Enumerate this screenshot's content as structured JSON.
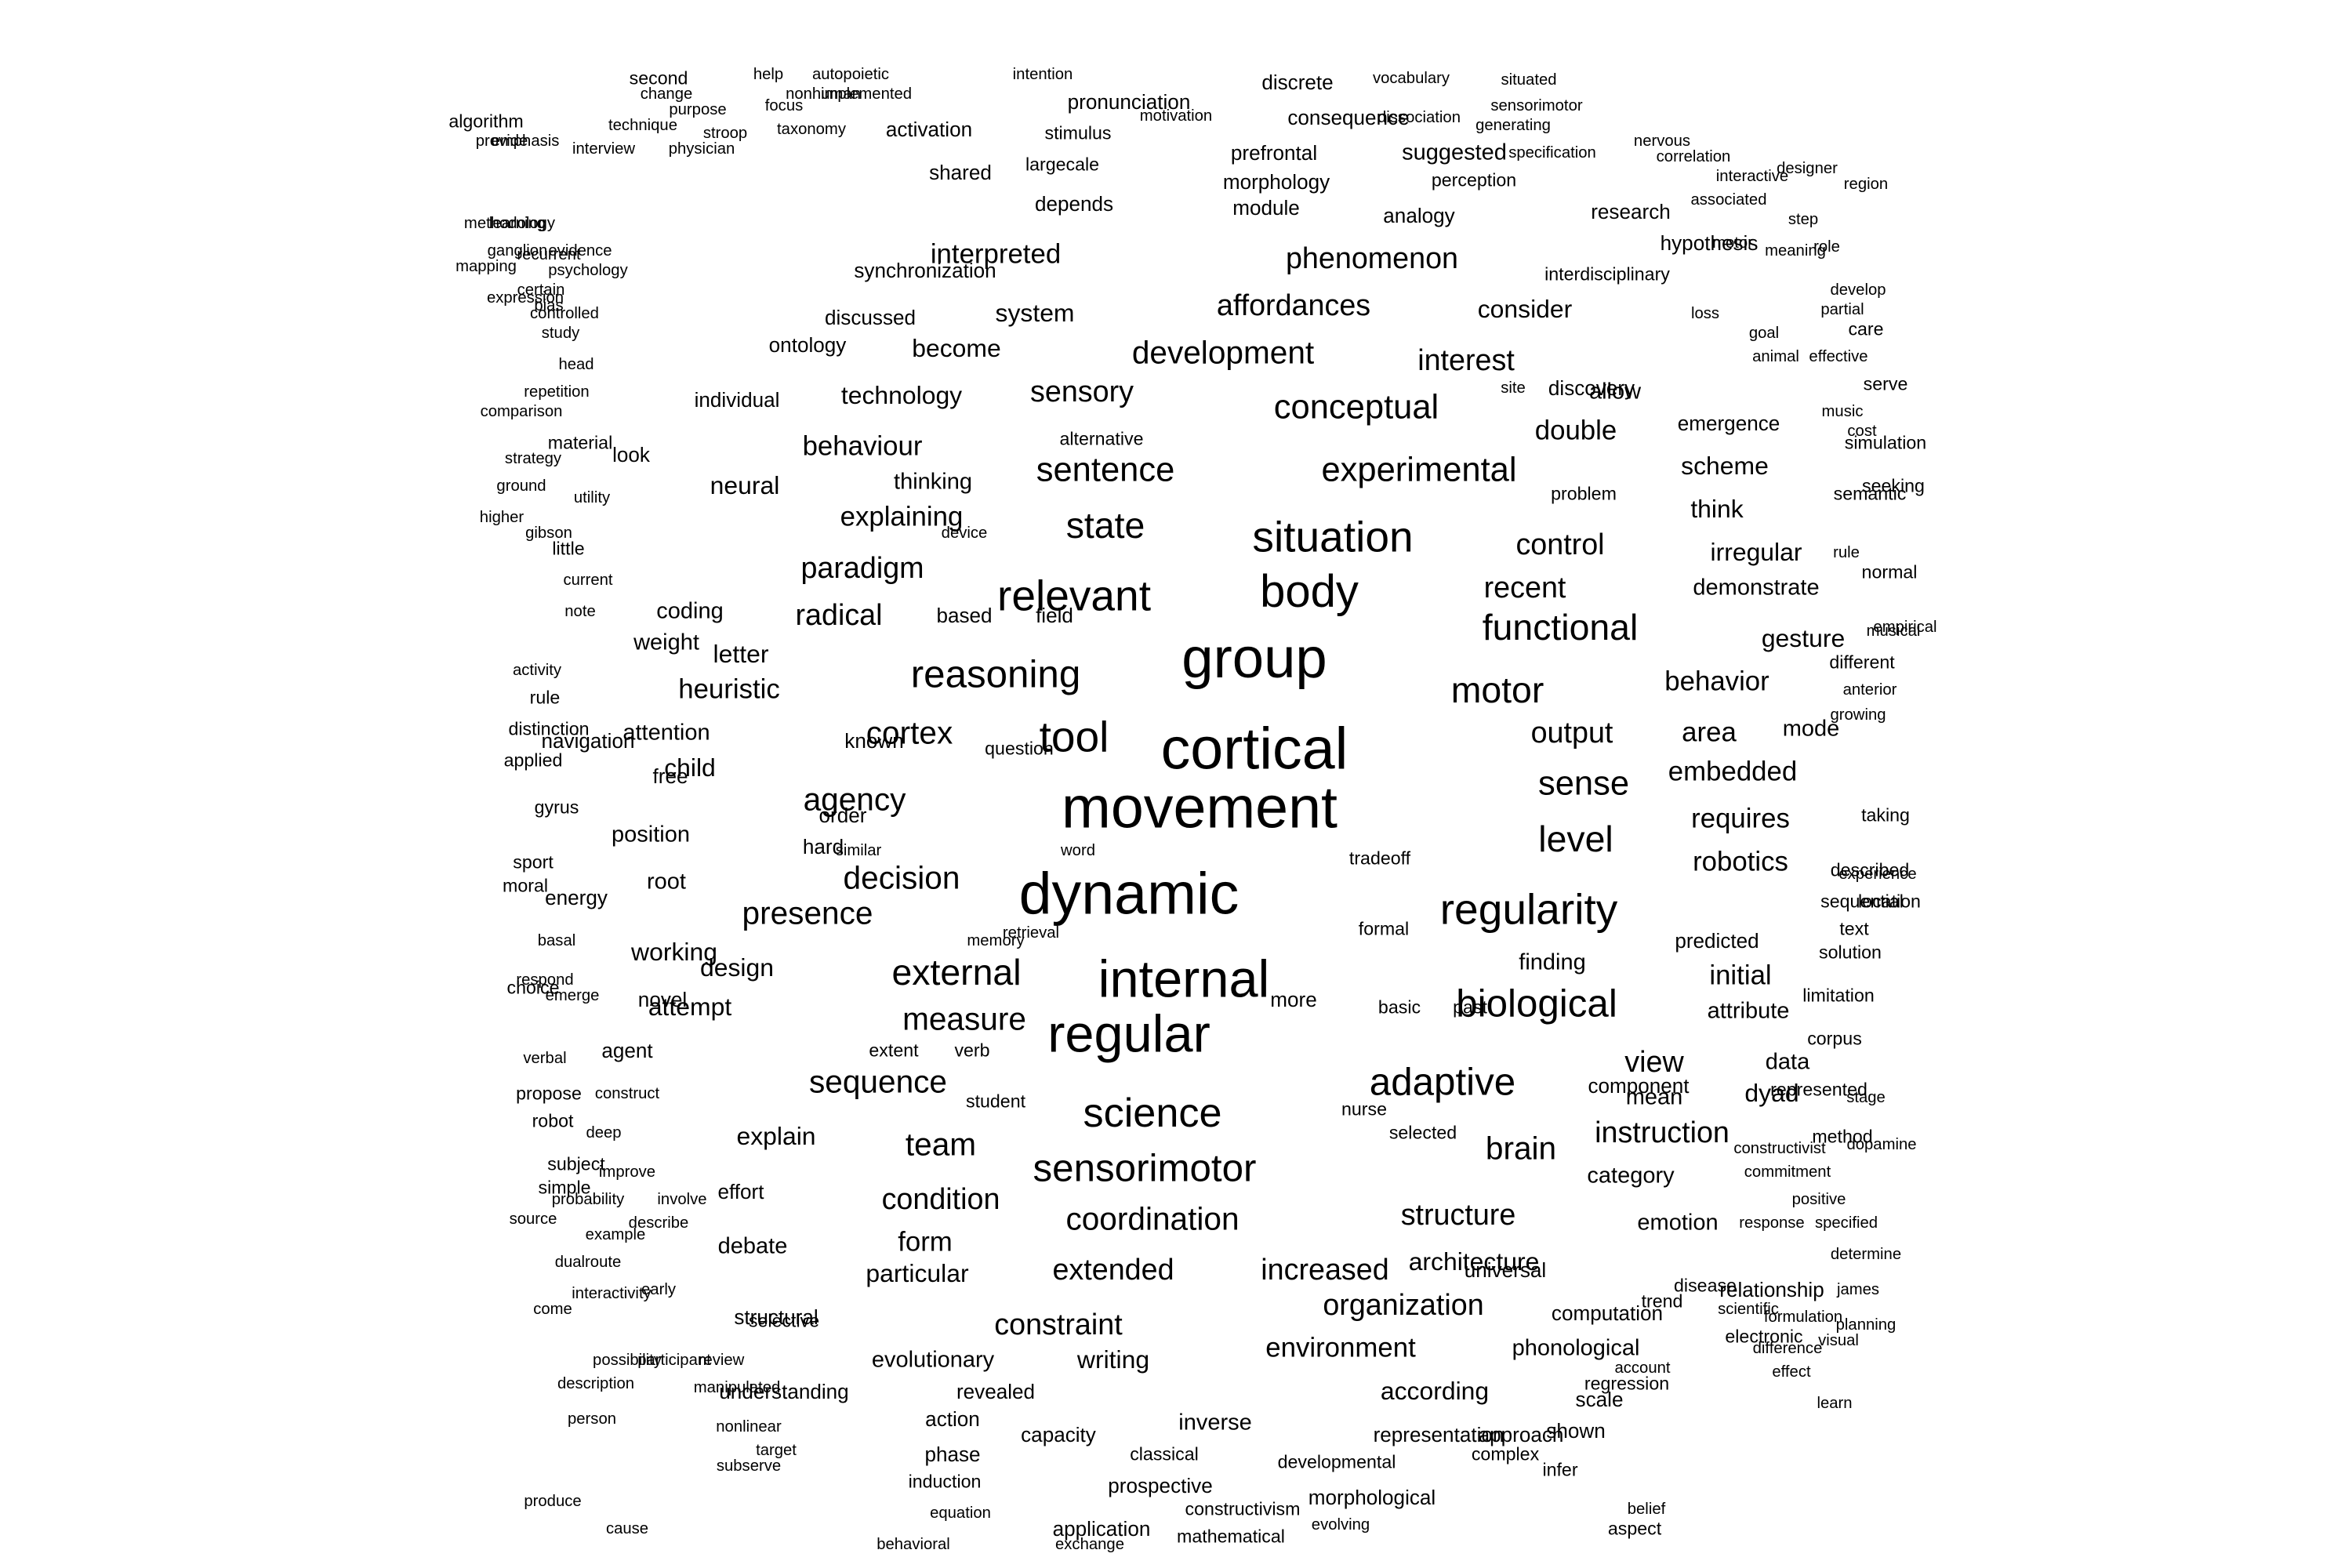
{
  "text_color": "#000000",
  "background_color": "#ffffff",
  "words": [
    {
      "text": "movement",
      "weight": 52
    },
    {
      "text": "dynamic",
      "weight": 52
    },
    {
      "text": "cortical",
      "weight": 52
    },
    {
      "text": "group",
      "weight": 50
    },
    {
      "text": "internal",
      "weight": 46
    },
    {
      "text": "regular",
      "weight": 46
    },
    {
      "text": "body",
      "weight": 40
    },
    {
      "text": "relevant",
      "weight": 38
    },
    {
      "text": "situation",
      "weight": 38
    },
    {
      "text": "regularity",
      "weight": 38
    },
    {
      "text": "tool",
      "weight": 38
    },
    {
      "text": "sensorimotor",
      "weight": 34
    },
    {
      "text": "science",
      "weight": 36
    },
    {
      "text": "reasoning",
      "weight": 34
    },
    {
      "text": "biological",
      "weight": 34
    },
    {
      "text": "adaptive",
      "weight": 34
    },
    {
      "text": "external",
      "weight": 32
    },
    {
      "text": "functional",
      "weight": 32
    },
    {
      "text": "motor",
      "weight": 32
    },
    {
      "text": "experimental",
      "weight": 30
    },
    {
      "text": "state",
      "weight": 32
    },
    {
      "text": "sentence",
      "weight": 30
    },
    {
      "text": "conceptual",
      "weight": 30
    },
    {
      "text": "level",
      "weight": 32
    },
    {
      "text": "sense",
      "weight": 30
    },
    {
      "text": "development",
      "weight": 28
    },
    {
      "text": "affordances",
      "weight": 26
    },
    {
      "text": "coordination",
      "weight": 28
    },
    {
      "text": "measure",
      "weight": 28
    },
    {
      "text": "sequence",
      "weight": 28
    },
    {
      "text": "cortex",
      "weight": 28
    },
    {
      "text": "decision",
      "weight": 28
    },
    {
      "text": "presence",
      "weight": 28
    },
    {
      "text": "agency",
      "weight": 28
    },
    {
      "text": "phenomenon",
      "weight": 26
    },
    {
      "text": "brain",
      "weight": 28
    },
    {
      "text": "team",
      "weight": 28
    },
    {
      "text": "extended",
      "weight": 26
    },
    {
      "text": "increased",
      "weight": 26
    },
    {
      "text": "constraint",
      "weight": 26
    },
    {
      "text": "organization",
      "weight": 26
    },
    {
      "text": "structure",
      "weight": 26
    },
    {
      "text": "environment",
      "weight": 24
    },
    {
      "text": "condition",
      "weight": 26
    },
    {
      "text": "instruction",
      "weight": 26
    },
    {
      "text": "view",
      "weight": 26
    },
    {
      "text": "control",
      "weight": 26
    },
    {
      "text": "recent",
      "weight": 26
    },
    {
      "text": "double",
      "weight": 24
    },
    {
      "text": "paradigm",
      "weight": 26
    },
    {
      "text": "radical",
      "weight": 26
    },
    {
      "text": "heuristic",
      "weight": 24
    },
    {
      "text": "explaining",
      "weight": 24
    },
    {
      "text": "behaviour",
      "weight": 24
    },
    {
      "text": "sensory",
      "weight": 26
    },
    {
      "text": "interpreted",
      "weight": 24
    },
    {
      "text": "interest",
      "weight": 26
    },
    {
      "text": "output",
      "weight": 26
    },
    {
      "text": "area",
      "weight": 24
    },
    {
      "text": "embedded",
      "weight": 24
    },
    {
      "text": "behavior",
      "weight": 24
    },
    {
      "text": "requires",
      "weight": 24
    },
    {
      "text": "robotics",
      "weight": 24
    },
    {
      "text": "initial",
      "weight": 24
    },
    {
      "text": "form",
      "weight": 24
    },
    {
      "text": "architecture",
      "weight": 22
    },
    {
      "text": "consider",
      "weight": 22
    },
    {
      "text": "technology",
      "weight": 22
    },
    {
      "text": "system",
      "weight": 22
    },
    {
      "text": "become",
      "weight": 22
    },
    {
      "text": "design",
      "weight": 22
    },
    {
      "text": "attempt",
      "weight": 22
    },
    {
      "text": "explain",
      "weight": 22
    },
    {
      "text": "according",
      "weight": 22
    },
    {
      "text": "particular",
      "weight": 22
    },
    {
      "text": "writing",
      "weight": 22
    },
    {
      "text": "think",
      "weight": 22
    },
    {
      "text": "gesture",
      "weight": 22
    },
    {
      "text": "irregular",
      "weight": 22
    },
    {
      "text": "demonstrate",
      "weight": 20
    },
    {
      "text": "scheme",
      "weight": 22
    },
    {
      "text": "position",
      "weight": 20
    },
    {
      "text": "working",
      "weight": 22
    },
    {
      "text": "letter",
      "weight": 22
    },
    {
      "text": "child",
      "weight": 22
    },
    {
      "text": "neural",
      "weight": 22
    },
    {
      "text": "attention",
      "weight": 20
    },
    {
      "text": "category",
      "weight": 20
    },
    {
      "text": "emotion",
      "weight": 20
    },
    {
      "text": "evolutionary",
      "weight": 20
    },
    {
      "text": "finding",
      "weight": 20
    },
    {
      "text": "attribute",
      "weight": 20
    },
    {
      "text": "dyad",
      "weight": 22
    },
    {
      "text": "mean",
      "weight": 20
    },
    {
      "text": "data",
      "weight": 20
    },
    {
      "text": "inverse",
      "weight": 20
    },
    {
      "text": "phonological",
      "weight": 20
    },
    {
      "text": "computation",
      "weight": 18
    },
    {
      "text": "weight",
      "weight": 20
    },
    {
      "text": "thinking",
      "weight": 20
    },
    {
      "text": "allow",
      "weight": 20
    },
    {
      "text": "coding",
      "weight": 20
    },
    {
      "text": "root",
      "weight": 20
    },
    {
      "text": "debate",
      "weight": 20
    },
    {
      "text": "mode",
      "weight": 20
    },
    {
      "text": "predicted",
      "weight": 18
    },
    {
      "text": "effort",
      "weight": 18
    },
    {
      "text": "action",
      "weight": 18
    },
    {
      "text": "phase",
      "weight": 18
    },
    {
      "text": "relationship",
      "weight": 18
    },
    {
      "text": "representation",
      "weight": 18
    },
    {
      "text": "capacity",
      "weight": 18
    },
    {
      "text": "scale",
      "weight": 18
    },
    {
      "text": "component",
      "weight": 18
    },
    {
      "text": "discovery",
      "weight": 18
    },
    {
      "text": "synchronization",
      "weight": 18
    },
    {
      "text": "activation",
      "weight": 18
    },
    {
      "text": "prefrontal",
      "weight": 18
    },
    {
      "text": "morphology",
      "weight": 18
    },
    {
      "text": "consequence",
      "weight": 18
    },
    {
      "text": "depends",
      "weight": 18
    },
    {
      "text": "approach",
      "weight": 18
    },
    {
      "text": "structural",
      "weight": 18
    },
    {
      "text": "universal",
      "weight": 18
    },
    {
      "text": "revealed",
      "weight": 18
    },
    {
      "text": "understanding",
      "weight": 18
    },
    {
      "text": "prospective",
      "weight": 18
    },
    {
      "text": "morphological",
      "weight": 18
    },
    {
      "text": "application",
      "weight": 18
    },
    {
      "text": "induction",
      "weight": 16
    },
    {
      "text": "complex",
      "weight": 16
    },
    {
      "text": "shown",
      "weight": 18
    },
    {
      "text": "regression",
      "weight": 16
    },
    {
      "text": "seeking",
      "weight": 16
    },
    {
      "text": "simulation",
      "weight": 16
    },
    {
      "text": "serve",
      "weight": 16
    },
    {
      "text": "emergence",
      "weight": 18
    },
    {
      "text": "interdisciplinary",
      "weight": 16
    },
    {
      "text": "hypothesis",
      "weight": 18
    },
    {
      "text": "research",
      "weight": 18
    },
    {
      "text": "perception",
      "weight": 16
    },
    {
      "text": "suggested",
      "weight": 20
    },
    {
      "text": "analogy",
      "weight": 18
    },
    {
      "text": "module",
      "weight": 18
    },
    {
      "text": "shared",
      "weight": 18
    },
    {
      "text": "largecale",
      "weight": 16
    },
    {
      "text": "stimulus",
      "weight": 16
    },
    {
      "text": "pronunciation",
      "weight": 18
    },
    {
      "text": "discrete",
      "weight": 18
    },
    {
      "text": "discussed",
      "weight": 18
    },
    {
      "text": "ontology",
      "weight": 18
    },
    {
      "text": "individual",
      "weight": 18
    },
    {
      "text": "alternative",
      "weight": 16
    },
    {
      "text": "look",
      "weight": 18
    },
    {
      "text": "based",
      "weight": 18
    },
    {
      "text": "field",
      "weight": 18
    },
    {
      "text": "known",
      "weight": 18
    },
    {
      "text": "free",
      "weight": 18
    },
    {
      "text": "hard",
      "weight": 18
    },
    {
      "text": "order",
      "weight": 18
    },
    {
      "text": "navigation",
      "weight": 18
    },
    {
      "text": "energy",
      "weight": 18
    },
    {
      "text": "novel",
      "weight": 18
    },
    {
      "text": "agent",
      "weight": 18
    },
    {
      "text": "more",
      "weight": 18
    },
    {
      "text": "selected",
      "weight": 16
    },
    {
      "text": "problem",
      "weight": 16
    },
    {
      "text": "semantic",
      "weight": 16
    },
    {
      "text": "normal",
      "weight": 16
    },
    {
      "text": "different",
      "weight": 16
    },
    {
      "text": "taking",
      "weight": 16
    },
    {
      "text": "described",
      "weight": 16
    },
    {
      "text": "sequential",
      "weight": 16
    },
    {
      "text": "location",
      "weight": 16
    },
    {
      "text": "solution",
      "weight": 16
    },
    {
      "text": "limitation",
      "weight": 16
    },
    {
      "text": "corpus",
      "weight": 16
    },
    {
      "text": "represented",
      "weight": 16
    },
    {
      "text": "method",
      "weight": 16
    },
    {
      "text": "constructivist",
      "weight": 14
    },
    {
      "text": "commitment",
      "weight": 14
    },
    {
      "text": "positive",
      "weight": 14
    },
    {
      "text": "text",
      "weight": 16
    },
    {
      "text": "music",
      "weight": 14
    },
    {
      "text": "formulation",
      "weight": 14
    },
    {
      "text": "electronic",
      "weight": 16
    },
    {
      "text": "disease",
      "weight": 16
    },
    {
      "text": "trend",
      "weight": 16
    },
    {
      "text": "classical",
      "weight": 16
    },
    {
      "text": "developmental",
      "weight": 16
    },
    {
      "text": "constructivism",
      "weight": 16
    },
    {
      "text": "mathematical",
      "weight": 16
    },
    {
      "text": "exchange",
      "weight": 14
    },
    {
      "text": "evolving",
      "weight": 14
    },
    {
      "text": "infer",
      "weight": 16
    },
    {
      "text": "aspect",
      "weight": 16
    },
    {
      "text": "belief",
      "weight": 14
    },
    {
      "text": "nurse",
      "weight": 16
    },
    {
      "text": "formal",
      "weight": 16
    },
    {
      "text": "basic",
      "weight": 16
    },
    {
      "text": "past",
      "weight": 16
    },
    {
      "text": "extent",
      "weight": 16
    },
    {
      "text": "verb",
      "weight": 16
    },
    {
      "text": "student",
      "weight": 16
    },
    {
      "text": "tradeoff",
      "weight": 16
    },
    {
      "text": "question",
      "weight": 16
    },
    {
      "text": "selective",
      "weight": 16
    },
    {
      "text": "early",
      "weight": 14
    },
    {
      "text": "construct",
      "weight": 14
    },
    {
      "text": "deep",
      "weight": 14
    },
    {
      "text": "improve",
      "weight": 14
    },
    {
      "text": "involve",
      "weight": 14
    },
    {
      "text": "describe",
      "weight": 14
    },
    {
      "text": "probability",
      "weight": 14
    },
    {
      "text": "example",
      "weight": 14
    },
    {
      "text": "dualroute",
      "weight": 14
    },
    {
      "text": "interactivity",
      "weight": 14
    },
    {
      "text": "equation",
      "weight": 14
    },
    {
      "text": "behavioral",
      "weight": 14
    },
    {
      "text": "target",
      "weight": 14
    },
    {
      "text": "subserve",
      "weight": 14
    },
    {
      "text": "nonlinear",
      "weight": 14
    },
    {
      "text": "manipulated",
      "weight": 14
    },
    {
      "text": "review",
      "weight": 14
    },
    {
      "text": "participant",
      "weight": 14
    },
    {
      "text": "possibility",
      "weight": 14
    },
    {
      "text": "description",
      "weight": 14
    },
    {
      "text": "person",
      "weight": 14
    },
    {
      "text": "produce",
      "weight": 14
    },
    {
      "text": "cause",
      "weight": 14
    },
    {
      "text": "come",
      "weight": 14
    },
    {
      "text": "source",
      "weight": 14
    },
    {
      "text": "simple",
      "weight": 16
    },
    {
      "text": "subject",
      "weight": 16
    },
    {
      "text": "robot",
      "weight": 16
    },
    {
      "text": "propose",
      "weight": 16
    },
    {
      "text": "verbal",
      "weight": 14
    },
    {
      "text": "emerge",
      "weight": 14
    },
    {
      "text": "choice",
      "weight": 16
    },
    {
      "text": "respond",
      "weight": 14
    },
    {
      "text": "basal",
      "weight": 14
    },
    {
      "text": "moral",
      "weight": 16
    },
    {
      "text": "sport",
      "weight": 16
    },
    {
      "text": "gyrus",
      "weight": 16
    },
    {
      "text": "applied",
      "weight": 16
    },
    {
      "text": "distinction",
      "weight": 16
    },
    {
      "text": "rule",
      "weight": 16
    },
    {
      "text": "activity",
      "weight": 14
    },
    {
      "text": "note",
      "weight": 14
    },
    {
      "text": "current",
      "weight": 14
    },
    {
      "text": "little",
      "weight": 16
    },
    {
      "text": "gibson",
      "weight": 14
    },
    {
      "text": "utility",
      "weight": 14
    },
    {
      "text": "higher",
      "weight": 14
    },
    {
      "text": "ground",
      "weight": 14
    },
    {
      "text": "strategy",
      "weight": 14
    },
    {
      "text": "material",
      "weight": 16
    },
    {
      "text": "comparison",
      "weight": 14
    },
    {
      "text": "repetition",
      "weight": 14
    },
    {
      "text": "head",
      "weight": 14
    },
    {
      "text": "study",
      "weight": 14
    },
    {
      "text": "controlled",
      "weight": 14
    },
    {
      "text": "bias",
      "weight": 14
    },
    {
      "text": "expression",
      "weight": 14
    },
    {
      "text": "certain",
      "weight": 14
    },
    {
      "text": "methodology",
      "weight": 14
    },
    {
      "text": "recurrent",
      "weight": 14
    },
    {
      "text": "psychology",
      "weight": 14
    },
    {
      "text": "evidence",
      "weight": 14
    },
    {
      "text": "ganglion",
      "weight": 14
    },
    {
      "text": "mapping",
      "weight": 14
    },
    {
      "text": "learning",
      "weight": 14
    },
    {
      "text": "physician",
      "weight": 14
    },
    {
      "text": "stroop",
      "weight": 14
    },
    {
      "text": "technique",
      "weight": 14
    },
    {
      "text": "provide",
      "weight": 14
    },
    {
      "text": "emphasis",
      "weight": 14
    },
    {
      "text": "interview",
      "weight": 14
    },
    {
      "text": "purpose",
      "weight": 14
    },
    {
      "text": "change",
      "weight": 14
    },
    {
      "text": "algorithm",
      "weight": 16
    },
    {
      "text": "second",
      "weight": 16
    },
    {
      "text": "help",
      "weight": 14
    },
    {
      "text": "autopoietic",
      "weight": 14
    },
    {
      "text": "nonhuman",
      "weight": 14
    },
    {
      "text": "implemented",
      "weight": 14
    },
    {
      "text": "intention",
      "weight": 14
    },
    {
      "text": "focus",
      "weight": 14
    },
    {
      "text": "taxonomy",
      "weight": 14
    },
    {
      "text": "motivation",
      "weight": 14
    },
    {
      "text": "vocabulary",
      "weight": 14
    },
    {
      "text": "situated",
      "weight": 14
    },
    {
      "text": "sensorimotor",
      "weight": 14
    },
    {
      "text": "dissociation",
      "weight": 14
    },
    {
      "text": "generating",
      "weight": 14
    },
    {
      "text": "specification",
      "weight": 14
    },
    {
      "text": "nervous",
      "weight": 14
    },
    {
      "text": "designer",
      "weight": 14
    },
    {
      "text": "interactive",
      "weight": 14
    },
    {
      "text": "associated",
      "weight": 14
    },
    {
      "text": "correlation",
      "weight": 14
    },
    {
      "text": "region",
      "weight": 14
    },
    {
      "text": "step",
      "weight": 14
    },
    {
      "text": "role",
      "weight": 14
    },
    {
      "text": "motor",
      "weight": 14
    },
    {
      "text": "meaning",
      "weight": 14
    },
    {
      "text": "loss",
      "weight": 14
    },
    {
      "text": "goal",
      "weight": 14
    },
    {
      "text": "partial",
      "weight": 14
    },
    {
      "text": "animal",
      "weight": 14
    },
    {
      "text": "effective",
      "weight": 14
    },
    {
      "text": "develop",
      "weight": 14
    },
    {
      "text": "care",
      "weight": 16
    },
    {
      "text": "site",
      "weight": 14
    },
    {
      "text": "cost",
      "weight": 14
    },
    {
      "text": "rule",
      "weight": 14
    },
    {
      "text": "musical",
      "weight": 14
    },
    {
      "text": "device",
      "weight": 14
    },
    {
      "text": "empirical",
      "weight": 14
    },
    {
      "text": "anterior",
      "weight": 14
    },
    {
      "text": "growing",
      "weight": 14
    },
    {
      "text": "experience",
      "weight": 14
    },
    {
      "text": "retrieval",
      "weight": 14
    },
    {
      "text": "similar",
      "weight": 14
    },
    {
      "text": "word",
      "weight": 14
    },
    {
      "text": "memory",
      "weight": 14
    },
    {
      "text": "stage",
      "weight": 14
    },
    {
      "text": "dopamine",
      "weight": 14
    },
    {
      "text": "response",
      "weight": 14
    },
    {
      "text": "specified",
      "weight": 14
    },
    {
      "text": "determine",
      "weight": 14
    },
    {
      "text": "james",
      "weight": 14
    },
    {
      "text": "planning",
      "weight": 14
    },
    {
      "text": "visual",
      "weight": 14
    },
    {
      "text": "difference",
      "weight": 14
    },
    {
      "text": "scientific",
      "weight": 14
    },
    {
      "text": "account",
      "weight": 14
    },
    {
      "text": "effect",
      "weight": 14
    },
    {
      "text": "learn",
      "weight": 14
    }
  ]
}
